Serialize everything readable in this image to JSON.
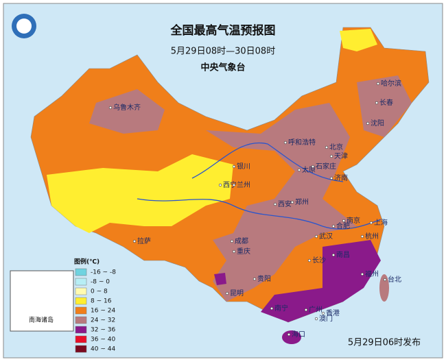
{
  "header": {
    "title": "全国最高气温预报图",
    "subtitle": "5月29日08时—30日08时",
    "issuer": "中央气象台"
  },
  "legend": {
    "title": "图例(℃)",
    "items": [
      {
        "label": "-16 ~ -8",
        "color": "#6fd3e0"
      },
      {
        "label": "-8 ~ 0",
        "color": "#b7eef5"
      },
      {
        "label": "0 ~ 8",
        "color": "#fffbb0"
      },
      {
        "label": "8 ~ 16",
        "color": "#ffee30"
      },
      {
        "label": "16 ~ 24",
        "color": "#f07f1a"
      },
      {
        "label": "24 ~ 32",
        "color": "#b87a7e"
      },
      {
        "label": "32 ~ 36",
        "color": "#8a1a8a"
      },
      {
        "label": "36 ~ 40",
        "color": "#e8102a"
      },
      {
        "label": "40 ~ 44",
        "color": "#7a0a20"
      }
    ]
  },
  "inset_label": "南海诸岛",
  "cities": [
    "乌鲁木齐",
    "哈尔滨",
    "长春",
    "沈阳",
    "呼和浩特",
    "北京",
    "天津",
    "银川",
    "太原",
    "石家庄",
    "济南",
    "西宁",
    "兰州",
    "西安",
    "郑州",
    "南京",
    "合肥",
    "上海",
    "拉萨",
    "成都",
    "武汉",
    "杭州",
    "重庆",
    "南昌",
    "长沙",
    "贵阳",
    "福州",
    "台北",
    "昆明",
    "南宁",
    "广州",
    "香港",
    "澳门",
    "海口"
  ],
  "footer": "5月29日06时发布"
}
